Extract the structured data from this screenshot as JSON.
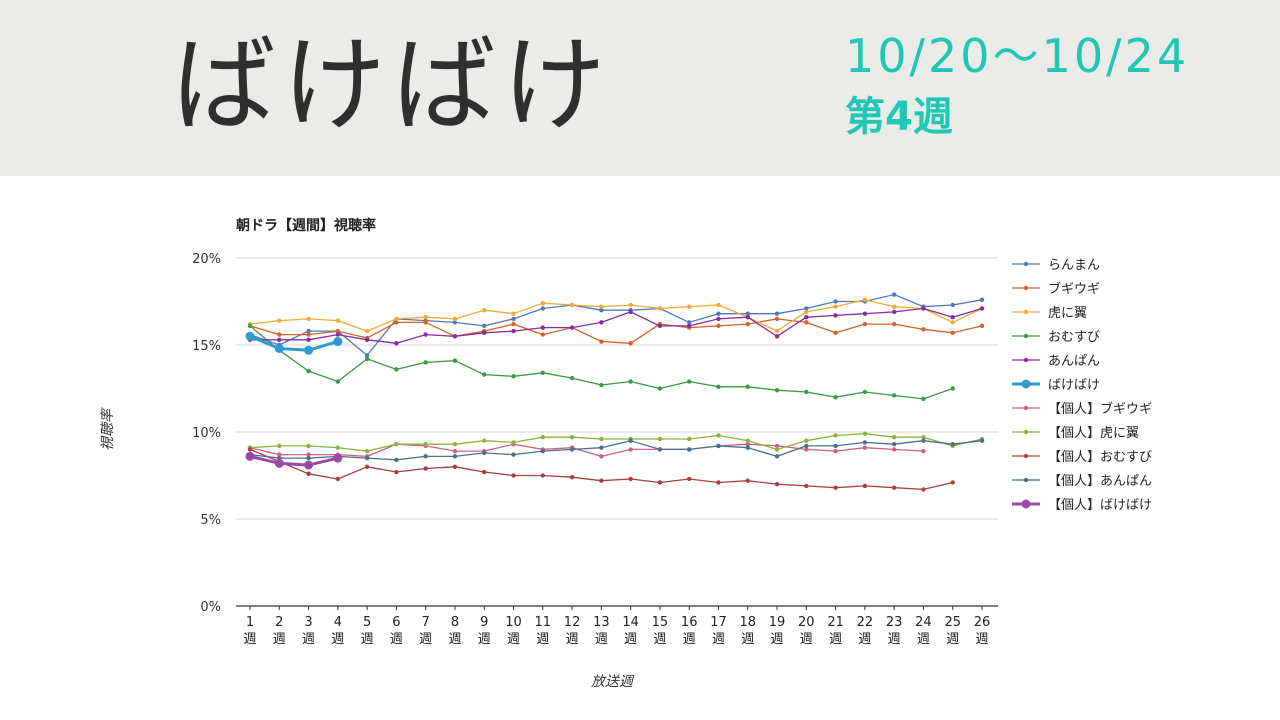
{
  "header": {
    "title": "ばけばけ",
    "date_range": "10/20～10/24",
    "week": "第4週"
  },
  "chart_data": {
    "type": "line",
    "title": "朝ドラ【週間】視聴率",
    "xlabel": "放送週",
    "ylabel": "視聴率",
    "ylim": [
      0,
      20
    ],
    "yticks": [
      "0%",
      "5%",
      "10%",
      "15%",
      "20%"
    ],
    "categories": [
      [
        "1",
        "週"
      ],
      [
        "2",
        "週"
      ],
      [
        "3",
        "週"
      ],
      [
        "4",
        "週"
      ],
      [
        "5",
        "週"
      ],
      [
        "6",
        "週"
      ],
      [
        "7",
        "週"
      ],
      [
        "8",
        "週"
      ],
      [
        "9",
        "週"
      ],
      [
        "10",
        "週"
      ],
      [
        "11",
        "週"
      ],
      [
        "12",
        "週"
      ],
      [
        "13",
        "週"
      ],
      [
        "14",
        "週"
      ],
      [
        "15",
        "週"
      ],
      [
        "16",
        "週"
      ],
      [
        "17",
        "週"
      ],
      [
        "18",
        "週"
      ],
      [
        "19",
        "週"
      ],
      [
        "20",
        "週"
      ],
      [
        "21",
        "週"
      ],
      [
        "22",
        "週"
      ],
      [
        "23",
        "週"
      ],
      [
        "24",
        "週"
      ],
      [
        "25",
        "週"
      ],
      [
        "26",
        "週"
      ]
    ],
    "grid": true,
    "legend_position": "right",
    "series": [
      {
        "name": "らんまん",
        "color": "#4e79b8",
        "emphasis": false,
        "values": [
          15.6,
          15.0,
          15.8,
          15.8,
          14.4,
          16.5,
          16.4,
          16.3,
          16.1,
          16.5,
          17.1,
          17.3,
          17.0,
          17.0,
          17.1,
          16.3,
          16.8,
          16.8,
          16.8,
          17.1,
          17.5,
          17.5,
          17.9,
          17.2,
          17.3,
          17.6
        ]
      },
      {
        "name": "ブギウギ",
        "color": "#d4622b",
        "emphasis": false,
        "values": [
          16.1,
          15.6,
          15.6,
          15.8,
          15.4,
          16.3,
          16.3,
          15.5,
          15.8,
          16.2,
          15.6,
          16.0,
          15.2,
          15.1,
          16.2,
          16.0,
          16.1,
          16.2,
          16.5,
          16.3,
          15.7,
          16.2,
          16.2,
          15.9,
          15.7,
          16.1
        ]
      },
      {
        "name": "虎に翼",
        "color": "#efab36",
        "emphasis": false,
        "values": [
          16.2,
          16.4,
          16.5,
          16.4,
          15.8,
          16.5,
          16.6,
          16.5,
          17.0,
          16.8,
          17.4,
          17.3,
          17.2,
          17.3,
          17.1,
          17.2,
          17.3,
          16.6,
          15.8,
          16.9,
          17.2,
          17.6,
          17.2,
          17.1,
          16.3,
          17.1
        ]
      },
      {
        "name": "おむすび",
        "color": "#3a9b3f",
        "emphasis": false,
        "values": [
          16.1,
          14.7,
          13.5,
          12.9,
          14.2,
          13.6,
          14.0,
          14.1,
          13.3,
          13.2,
          13.4,
          13.1,
          12.7,
          12.9,
          12.5,
          12.9,
          12.6,
          12.6,
          12.4,
          12.3,
          12.0,
          12.3,
          12.1,
          11.9,
          12.5,
          null
        ]
      },
      {
        "name": "あんぱん",
        "color": "#8a2c9e",
        "emphasis": false,
        "values": [
          15.3,
          15.3,
          15.3,
          15.6,
          15.3,
          15.1,
          15.6,
          15.5,
          15.7,
          15.8,
          16.0,
          16.0,
          16.3,
          16.9,
          16.1,
          16.1,
          16.5,
          16.6,
          15.5,
          16.6,
          16.7,
          16.8,
          16.9,
          17.1,
          16.6,
          17.1
        ]
      },
      {
        "name": "ばけばけ",
        "color": "#2b9bd0",
        "emphasis": true,
        "values": [
          15.5,
          14.8,
          14.7,
          15.2,
          null,
          null,
          null,
          null,
          null,
          null,
          null,
          null,
          null,
          null,
          null,
          null,
          null,
          null,
          null,
          null,
          null,
          null,
          null,
          null,
          null,
          null
        ]
      },
      {
        "name": "【個人】ブギウギ",
        "color": "#d05f85",
        "emphasis": false,
        "values": [
          9.1,
          8.7,
          8.7,
          8.7,
          8.6,
          9.3,
          9.2,
          8.9,
          8.9,
          9.3,
          9.0,
          9.1,
          8.6,
          9.0,
          9.0,
          9.0,
          9.2,
          9.3,
          9.2,
          9.0,
          8.9,
          9.1,
          9.0,
          8.9,
          null,
          null
        ]
      },
      {
        "name": "【個人】虎に翼",
        "color": "#8ab53a",
        "emphasis": false,
        "values": [
          9.1,
          9.2,
          9.2,
          9.1,
          8.9,
          9.3,
          9.3,
          9.3,
          9.5,
          9.4,
          9.7,
          9.7,
          9.6,
          9.6,
          9.6,
          9.6,
          9.8,
          9.5,
          9.0,
          9.5,
          9.8,
          9.9,
          9.7,
          9.7,
          9.2,
          9.6
        ]
      },
      {
        "name": "【個人】おむすび",
        "color": "#a8403e",
        "emphasis": false,
        "values": [
          9.0,
          8.3,
          7.6,
          7.3,
          8.0,
          7.7,
          7.9,
          8.0,
          7.7,
          7.5,
          7.5,
          7.4,
          7.2,
          7.3,
          7.1,
          7.3,
          7.1,
          7.2,
          7.0,
          6.9,
          6.8,
          6.9,
          6.8,
          6.7,
          7.1,
          null
        ]
      },
      {
        "name": "【個人】あんぱん",
        "color": "#4c6e8a",
        "emphasis": false,
        "values": [
          8.7,
          8.5,
          8.5,
          8.6,
          8.5,
          8.4,
          8.6,
          8.6,
          8.8,
          8.7,
          8.9,
          9.0,
          9.1,
          9.5,
          9.0,
          9.0,
          9.2,
          9.1,
          8.6,
          9.2,
          9.2,
          9.4,
          9.3,
          9.5,
          9.3,
          9.5
        ]
      },
      {
        "name": "【個人】ばけばけ",
        "color": "#9a4aa6",
        "emphasis": true,
        "values": [
          8.6,
          8.2,
          8.1,
          8.5,
          null,
          null,
          null,
          null,
          null,
          null,
          null,
          null,
          null,
          null,
          null,
          null,
          null,
          null,
          null,
          null,
          null,
          null,
          null,
          null,
          null,
          null
        ]
      }
    ]
  }
}
